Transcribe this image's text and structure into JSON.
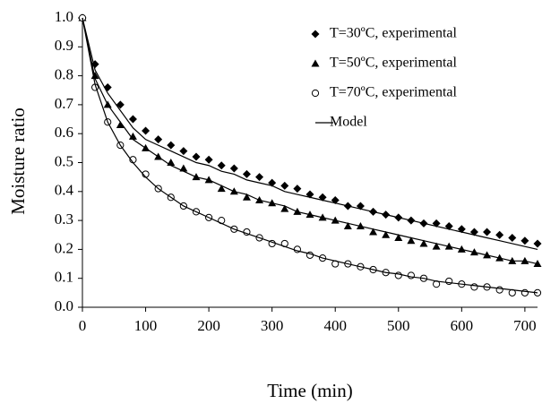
{
  "chart_data": {
    "type": "scatter",
    "x_label": "Time (min)",
    "y_label": "Moisture ratio",
    "xlim": [
      0,
      720
    ],
    "xticks": [
      0,
      100,
      200,
      300,
      400,
      500,
      600,
      700
    ],
    "ylim": [
      0,
      1
    ],
    "yticks": [
      {
        "value": 0,
        "label": "0.0"
      },
      0.1,
      0.2,
      0.3,
      0.4,
      0.5,
      0.6,
      0.7,
      0.8,
      0.9,
      {
        "value": 1,
        "label": "1.0"
      }
    ],
    "x": [
      0,
      20,
      40,
      60,
      80,
      100,
      120,
      140,
      160,
      180,
      200,
      220,
      240,
      260,
      280,
      300,
      320,
      340,
      360,
      380,
      400,
      420,
      440,
      460,
      480,
      500,
      520,
      540,
      560,
      580,
      600,
      620,
      640,
      660,
      680,
      700,
      720
    ],
    "series": [
      {
        "name": "T=30ºC, experimental",
        "marker": "diamond",
        "color": "#000000",
        "values": [
          1,
          0.84,
          0.76,
          0.7,
          0.65,
          0.61,
          0.58,
          0.56,
          0.54,
          0.52,
          0.51,
          0.49,
          0.48,
          0.46,
          0.45,
          0.43,
          0.42,
          0.41,
          0.39,
          0.38,
          0.37,
          0.35,
          0.35,
          0.33,
          0.32,
          0.31,
          0.3,
          0.29,
          0.29,
          0.28,
          0.27,
          0.26,
          0.26,
          0.25,
          0.24,
          0.23,
          0.22
        ]
      },
      {
        "name": "T=50ºC, experimental",
        "marker": "triangle",
        "color": "#000000",
        "values": [
          1,
          0.8,
          0.7,
          0.63,
          0.59,
          0.55,
          0.52,
          0.5,
          0.48,
          0.45,
          0.44,
          0.41,
          0.4,
          0.38,
          0.37,
          0.36,
          0.34,
          0.33,
          0.32,
          0.31,
          0.3,
          0.28,
          0.28,
          0.26,
          0.25,
          0.24,
          0.23,
          0.22,
          0.21,
          0.21,
          0.2,
          0.19,
          0.18,
          0.17,
          0.16,
          0.16,
          0.15
        ]
      },
      {
        "name": "T=70ºC, experimental",
        "marker": "circle-open",
        "color": "#000000",
        "values": [
          1,
          0.76,
          0.64,
          0.56,
          0.51,
          0.46,
          0.41,
          0.38,
          0.35,
          0.33,
          0.31,
          0.3,
          0.27,
          0.26,
          0.24,
          0.22,
          0.22,
          0.2,
          0.18,
          0.17,
          0.15,
          0.15,
          0.14,
          0.13,
          0.12,
          0.11,
          0.11,
          0.1,
          0.08,
          0.09,
          0.08,
          0.07,
          0.07,
          0.06,
          0.05,
          0.05,
          0.05
        ]
      },
      {
        "name": "Model",
        "marker": "line",
        "color": "#000000",
        "values": [
          1,
          0.82,
          0.74,
          0.68,
          0.62,
          0.58,
          0.56,
          0.54,
          0.52,
          0.5,
          0.49,
          0.47,
          0.46,
          0.44,
          0.43,
          0.42,
          0.4,
          0.39,
          0.38,
          0.37,
          0.36,
          0.35,
          0.34,
          0.33,
          0.32,
          0.31,
          0.3,
          0.29,
          0.28,
          0.27,
          0.26,
          0.25,
          0.24,
          0.23,
          0.22,
          0.21,
          0.2
        ]
      },
      {
        "marker": "line",
        "color": "#000000",
        "values": [
          1,
          0.79,
          0.7,
          0.64,
          0.58,
          0.55,
          0.52,
          0.49,
          0.47,
          0.45,
          0.44,
          0.42,
          0.4,
          0.39,
          0.37,
          0.36,
          0.35,
          0.33,
          0.32,
          0.31,
          0.3,
          0.29,
          0.28,
          0.27,
          0.26,
          0.25,
          0.24,
          0.23,
          0.22,
          0.21,
          0.2,
          0.19,
          0.18,
          0.17,
          0.16,
          0.16,
          0.15
        ]
      },
      {
        "marker": "line",
        "color": "#000000",
        "values": [
          1,
          0.77,
          0.64,
          0.56,
          0.5,
          0.45,
          0.41,
          0.38,
          0.35,
          0.33,
          0.31,
          0.29,
          0.27,
          0.255,
          0.24,
          0.225,
          0.21,
          0.195,
          0.185,
          0.17,
          0.16,
          0.15,
          0.14,
          0.13,
          0.12,
          0.115,
          0.105,
          0.1,
          0.09,
          0.085,
          0.08,
          0.075,
          0.07,
          0.065,
          0.06,
          0.055,
          0.05
        ]
      }
    ]
  }
}
